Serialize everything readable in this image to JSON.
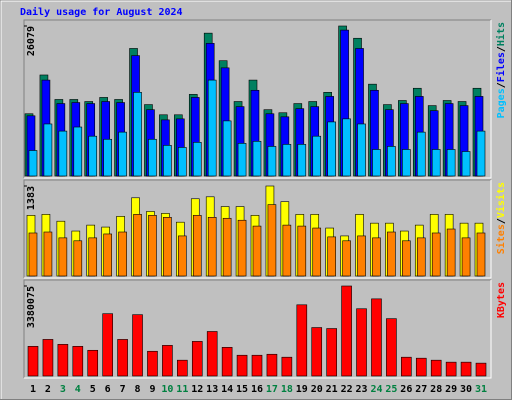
{
  "chart_data": [
    {
      "type": "bar",
      "title": "Daily usage for August 2024",
      "legend_separator": "/",
      "ylim": [
        0,
        26079
      ],
      "yticks": [
        26079
      ],
      "series": [
        {
          "name": "Hits",
          "color": "#008060",
          "values": [
            10822,
            17563,
            13305,
            13305,
            12950,
            13660,
            13305,
            22175,
            12418,
            10644,
            10644,
            14192,
            24836,
            20046,
            12950,
            16675,
            11531,
            10999,
            12595,
            12950,
            14547,
            26079,
            23949,
            15966,
            12418,
            13128,
            15256,
            12241,
            13128,
            12950,
            15256
          ]
        },
        {
          "name": "Files",
          "color": "#0000ff",
          "values": [
            10467,
            16675,
            12595,
            12773,
            12595,
            12950,
            12773,
            20933,
            11531,
            9757,
            9934,
            13660,
            23062,
            18804,
            12063,
            14902,
            10822,
            10289,
            11708,
            12063,
            13837,
            25368,
            22175,
            14902,
            11531,
            12595,
            13837,
            11354,
            12595,
            12241,
            13837
          ]
        },
        {
          "name": "Pages",
          "color": "#00c0ff",
          "values": [
            4435,
            9047,
            7806,
            8515,
            6919,
            6386,
            7628,
            14547,
            6386,
            5322,
            4967,
            5854,
            16675,
            9580,
            5677,
            6032,
            5145,
            5499,
            5499,
            6919,
            9402,
            9934,
            9047,
            4612,
            5145,
            4612,
            7628,
            4612,
            4612,
            4258,
            7806
          ]
        }
      ]
    },
    {
      "type": "bar",
      "legend_separator": "/",
      "ylim": [
        0,
        1383
      ],
      "yticks": [
        1383
      ],
      "series": [
        {
          "name": "Visits",
          "color": "#ffff00",
          "values": [
            932,
            947,
            842,
            691,
            782,
            752,
            917,
            1202,
            992,
            962,
            827,
            1187,
            1217,
            1067,
            1067,
            932,
            1383,
            1142,
            947,
            947,
            737,
            616,
            947,
            812,
            812,
            691,
            782,
            947,
            947,
            812,
            812
          ]
        },
        {
          "name": "Sites",
          "color": "#ff8000",
          "values": [
            661,
            676,
            586,
            541,
            586,
            646,
            676,
            947,
            932,
            902,
            616,
            932,
            902,
            887,
            857,
            767,
            1097,
            782,
            767,
            737,
            601,
            541,
            616,
            586,
            676,
            541,
            586,
            661,
            722,
            586,
            661
          ]
        }
      ]
    },
    {
      "type": "bar",
      "ylim": [
        0,
        3380075
      ],
      "yticks": [
        3380075
      ],
      "categories": [
        "1",
        "2",
        "3",
        "4",
        "5",
        "6",
        "7",
        "8",
        "9",
        "10",
        "11",
        "12",
        "13",
        "14",
        "15",
        "16",
        "17",
        "18",
        "19",
        "20",
        "21",
        "22",
        "23",
        "24",
        "25",
        "26",
        "27",
        "28",
        "29",
        "30",
        "31"
      ],
      "category_colors": [
        "#000000",
        "#000000",
        "#008040",
        "#008040",
        "#000000",
        "#000000",
        "#000000",
        "#000000",
        "#000000",
        "#008040",
        "#008040",
        "#000000",
        "#000000",
        "#000000",
        "#000000",
        "#000000",
        "#008040",
        "#008040",
        "#000000",
        "#000000",
        "#000000",
        "#000000",
        "#000000",
        "#008040",
        "#008040",
        "#000000",
        "#000000",
        "#000000",
        "#000000",
        "#000000",
        "#008040"
      ],
      "series": [
        {
          "name": "KBytes",
          "color": "#ff0000",
          "values": [
            1114000,
            1374000,
            1189000,
            1114000,
            966000,
            2340000,
            1374000,
            2303000,
            929000,
            1151000,
            594000,
            1300000,
            1672000,
            1077000,
            780000,
            780000,
            817000,
            706000,
            2674000,
            1820000,
            1783000,
            3380075,
            2526000,
            2897000,
            2154000,
            706000,
            669000,
            594000,
            520000,
            520000,
            483000
          ]
        }
      ]
    }
  ]
}
